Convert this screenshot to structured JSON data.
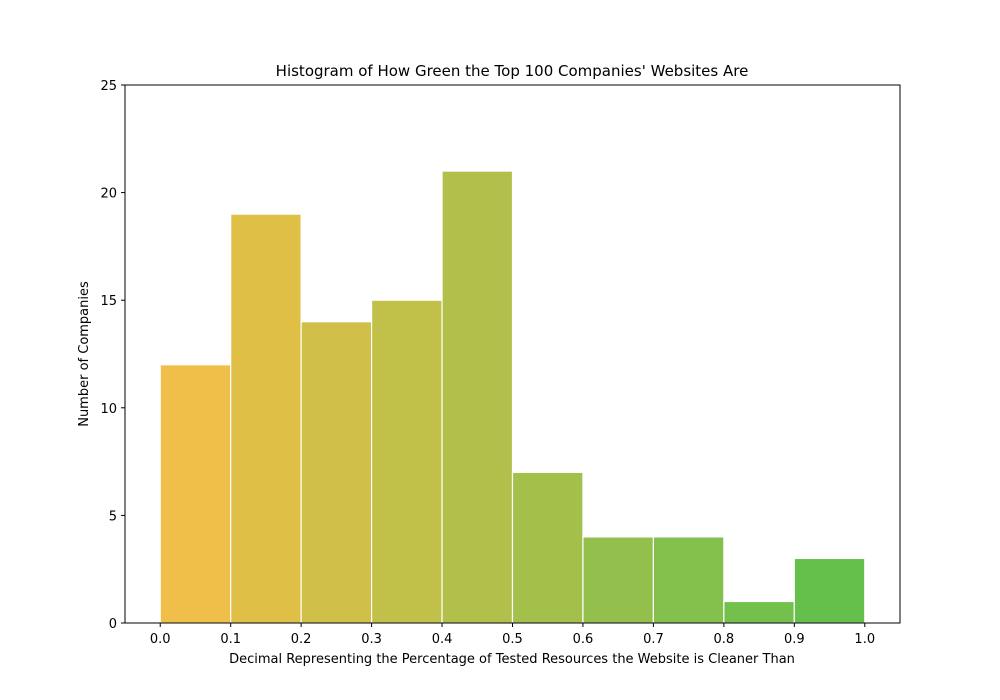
{
  "chart_data": {
    "type": "bar",
    "title": "Histogram of How Green the Top 100 Companies' Websites Are",
    "xlabel": "Decimal Representing the Percentage of Tested Resources the Website is Cleaner Than",
    "ylabel": "Number of Companies",
    "bin_edges": [
      0.0,
      0.1,
      0.2,
      0.3,
      0.4,
      0.5,
      0.6,
      0.7,
      0.8,
      0.9,
      1.0
    ],
    "values": [
      12,
      19,
      14,
      15,
      21,
      7,
      4,
      4,
      1,
      3
    ],
    "bar_colors": [
      "#f0bf4a",
      "#e0bf46",
      "#d0bf48",
      "#c1c049",
      "#b2c04b",
      "#a3c04b",
      "#93c04c",
      "#83c04c",
      "#73c04c",
      "#64c04b"
    ],
    "xlim": [
      -0.05,
      1.05
    ],
    "ylim": [
      0,
      25
    ],
    "xticks": [
      "0.0",
      "0.1",
      "0.2",
      "0.3",
      "0.4",
      "0.5",
      "0.6",
      "0.7",
      "0.8",
      "0.9",
      "1.0"
    ],
    "yticks": [
      "0",
      "5",
      "10",
      "15",
      "20",
      "25"
    ],
    "grid": false
  }
}
